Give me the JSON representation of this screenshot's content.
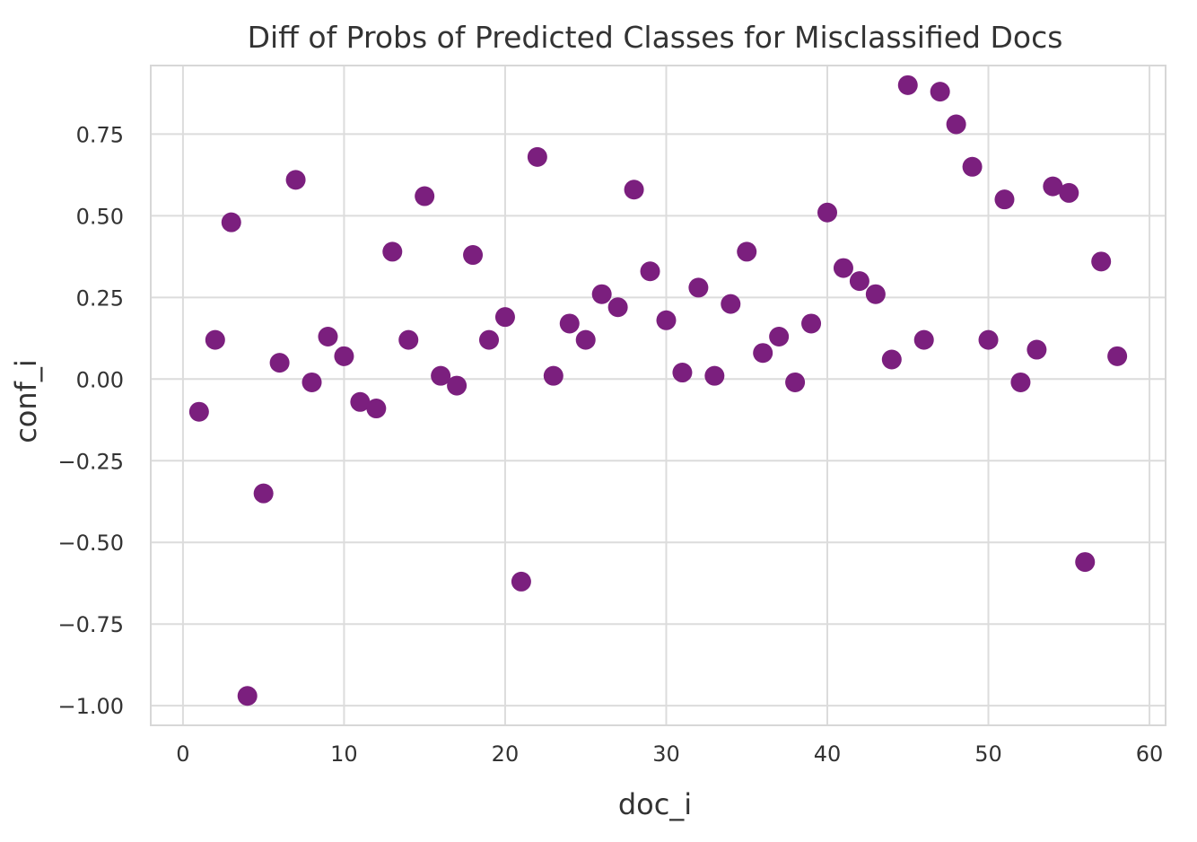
{
  "chart_data": {
    "type": "scatter",
    "title": "Diff of Probs of Predicted Classes for Misclassified Docs",
    "xlabel": "doc_i",
    "ylabel": "conf_i",
    "xlim": [
      -2,
      61
    ],
    "ylim": [
      -1.06,
      0.96
    ],
    "xticks": [
      0,
      10,
      20,
      30,
      40,
      50,
      60
    ],
    "xtick_labels": [
      "0",
      "10",
      "20",
      "30",
      "40",
      "50",
      "60"
    ],
    "yticks": [
      0.75,
      0.5,
      0.25,
      0.0,
      -0.25,
      -0.5,
      -0.75,
      -1.0
    ],
    "ytick_labels": [
      "0.75",
      "0.50",
      "0.25",
      "0.00",
      "−0.25",
      "−0.50",
      "−0.75",
      "−1.00"
    ],
    "grid": true,
    "marker_color": "#7b1f7e",
    "series": [
      {
        "name": "conf_i",
        "points": [
          {
            "x": 1,
            "y": -0.1
          },
          {
            "x": 2,
            "y": 0.12
          },
          {
            "x": 3,
            "y": 0.48
          },
          {
            "x": 4,
            "y": -0.97
          },
          {
            "x": 5,
            "y": -0.35
          },
          {
            "x": 6,
            "y": 0.05
          },
          {
            "x": 7,
            "y": 0.61
          },
          {
            "x": 8,
            "y": -0.01
          },
          {
            "x": 9,
            "y": 0.13
          },
          {
            "x": 10,
            "y": 0.07
          },
          {
            "x": 11,
            "y": -0.07
          },
          {
            "x": 12,
            "y": -0.09
          },
          {
            "x": 13,
            "y": 0.39
          },
          {
            "x": 14,
            "y": 0.12
          },
          {
            "x": 15,
            "y": 0.56
          },
          {
            "x": 16,
            "y": 0.01
          },
          {
            "x": 17,
            "y": -0.02
          },
          {
            "x": 18,
            "y": 0.38
          },
          {
            "x": 19,
            "y": 0.12
          },
          {
            "x": 20,
            "y": 0.19
          },
          {
            "x": 21,
            "y": -0.62
          },
          {
            "x": 22,
            "y": 0.68
          },
          {
            "x": 23,
            "y": 0.01
          },
          {
            "x": 24,
            "y": 0.17
          },
          {
            "x": 25,
            "y": 0.12
          },
          {
            "x": 26,
            "y": 0.26
          },
          {
            "x": 27,
            "y": 0.22
          },
          {
            "x": 28,
            "y": 0.58
          },
          {
            "x": 29,
            "y": 0.33
          },
          {
            "x": 30,
            "y": 0.18
          },
          {
            "x": 31,
            "y": 0.02
          },
          {
            "x": 32,
            "y": 0.28
          },
          {
            "x": 33,
            "y": 0.01
          },
          {
            "x": 34,
            "y": 0.23
          },
          {
            "x": 35,
            "y": 0.39
          },
          {
            "x": 36,
            "y": 0.08
          },
          {
            "x": 37,
            "y": 0.13
          },
          {
            "x": 38,
            "y": -0.01
          },
          {
            "x": 39,
            "y": 0.17
          },
          {
            "x": 40,
            "y": 0.51
          },
          {
            "x": 41,
            "y": 0.34
          },
          {
            "x": 42,
            "y": 0.3
          },
          {
            "x": 43,
            "y": 0.26
          },
          {
            "x": 44,
            "y": 0.06
          },
          {
            "x": 45,
            "y": 0.9
          },
          {
            "x": 46,
            "y": 0.12
          },
          {
            "x": 47,
            "y": 0.88
          },
          {
            "x": 48,
            "y": 0.78
          },
          {
            "x": 49,
            "y": 0.65
          },
          {
            "x": 50,
            "y": 0.12
          },
          {
            "x": 51,
            "y": 0.55
          },
          {
            "x": 52,
            "y": -0.01
          },
          {
            "x": 53,
            "y": 0.09
          },
          {
            "x": 54,
            "y": 0.59
          },
          {
            "x": 55,
            "y": 0.57
          },
          {
            "x": 56,
            "y": -0.56
          },
          {
            "x": 57,
            "y": 0.36
          },
          {
            "x": 58,
            "y": 0.07
          }
        ]
      }
    ]
  }
}
